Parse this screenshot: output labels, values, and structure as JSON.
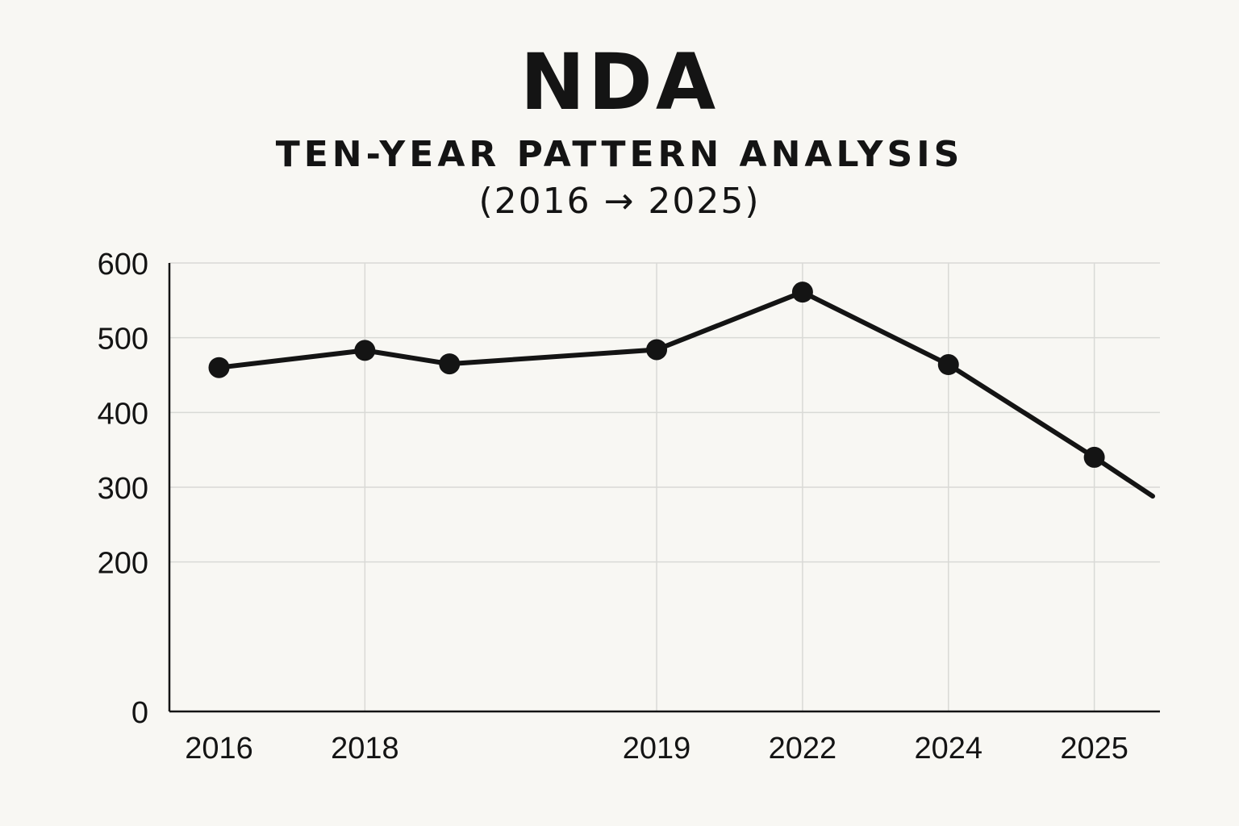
{
  "chart_data": {
    "type": "line",
    "title": "NDA",
    "subtitle": "TEN-YEAR PATTERN ANALYSIS",
    "subtitle_range": "(2016 → 2025)",
    "xlabel": "",
    "ylabel": "",
    "ylim": [
      0,
      600
    ],
    "yticks": [
      "0",
      "200",
      "300",
      "400",
      "500",
      "600"
    ],
    "ytick_values": [
      0,
      200,
      300,
      400,
      500,
      600
    ],
    "x_tick_labels": [
      "2016",
      "2018",
      "2019",
      "2022",
      "2024",
      "2025"
    ],
    "x_tick_positions": [
      1,
      2,
      4,
      5,
      6,
      7
    ],
    "xlim": [
      0.66,
      7.45
    ],
    "grid": true,
    "series": [
      {
        "name": "NDA",
        "x": [
          1,
          2,
          2.58,
          4,
          5,
          6,
          7,
          7.4
        ],
        "values": [
          460,
          483,
          465,
          484,
          561,
          464,
          340,
          288
        ],
        "markers": [
          true,
          true,
          true,
          true,
          true,
          true,
          true,
          false
        ],
        "color": "#141414"
      }
    ],
    "colors": {
      "background": "#f8f7f3",
      "grid": "#d9d9d6",
      "axis": "#141414",
      "line": "#141414"
    }
  }
}
